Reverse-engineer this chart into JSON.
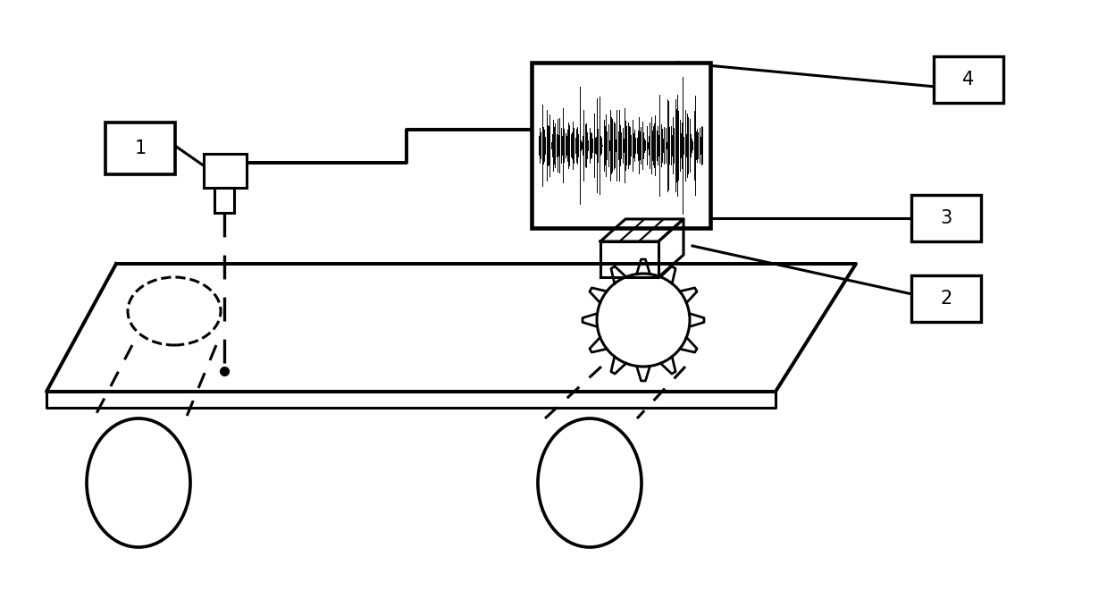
{
  "bg_color": "#ffffff",
  "line_color": "#000000",
  "lw": 2.2,
  "fig_width": 12.39,
  "fig_height": 6.61
}
